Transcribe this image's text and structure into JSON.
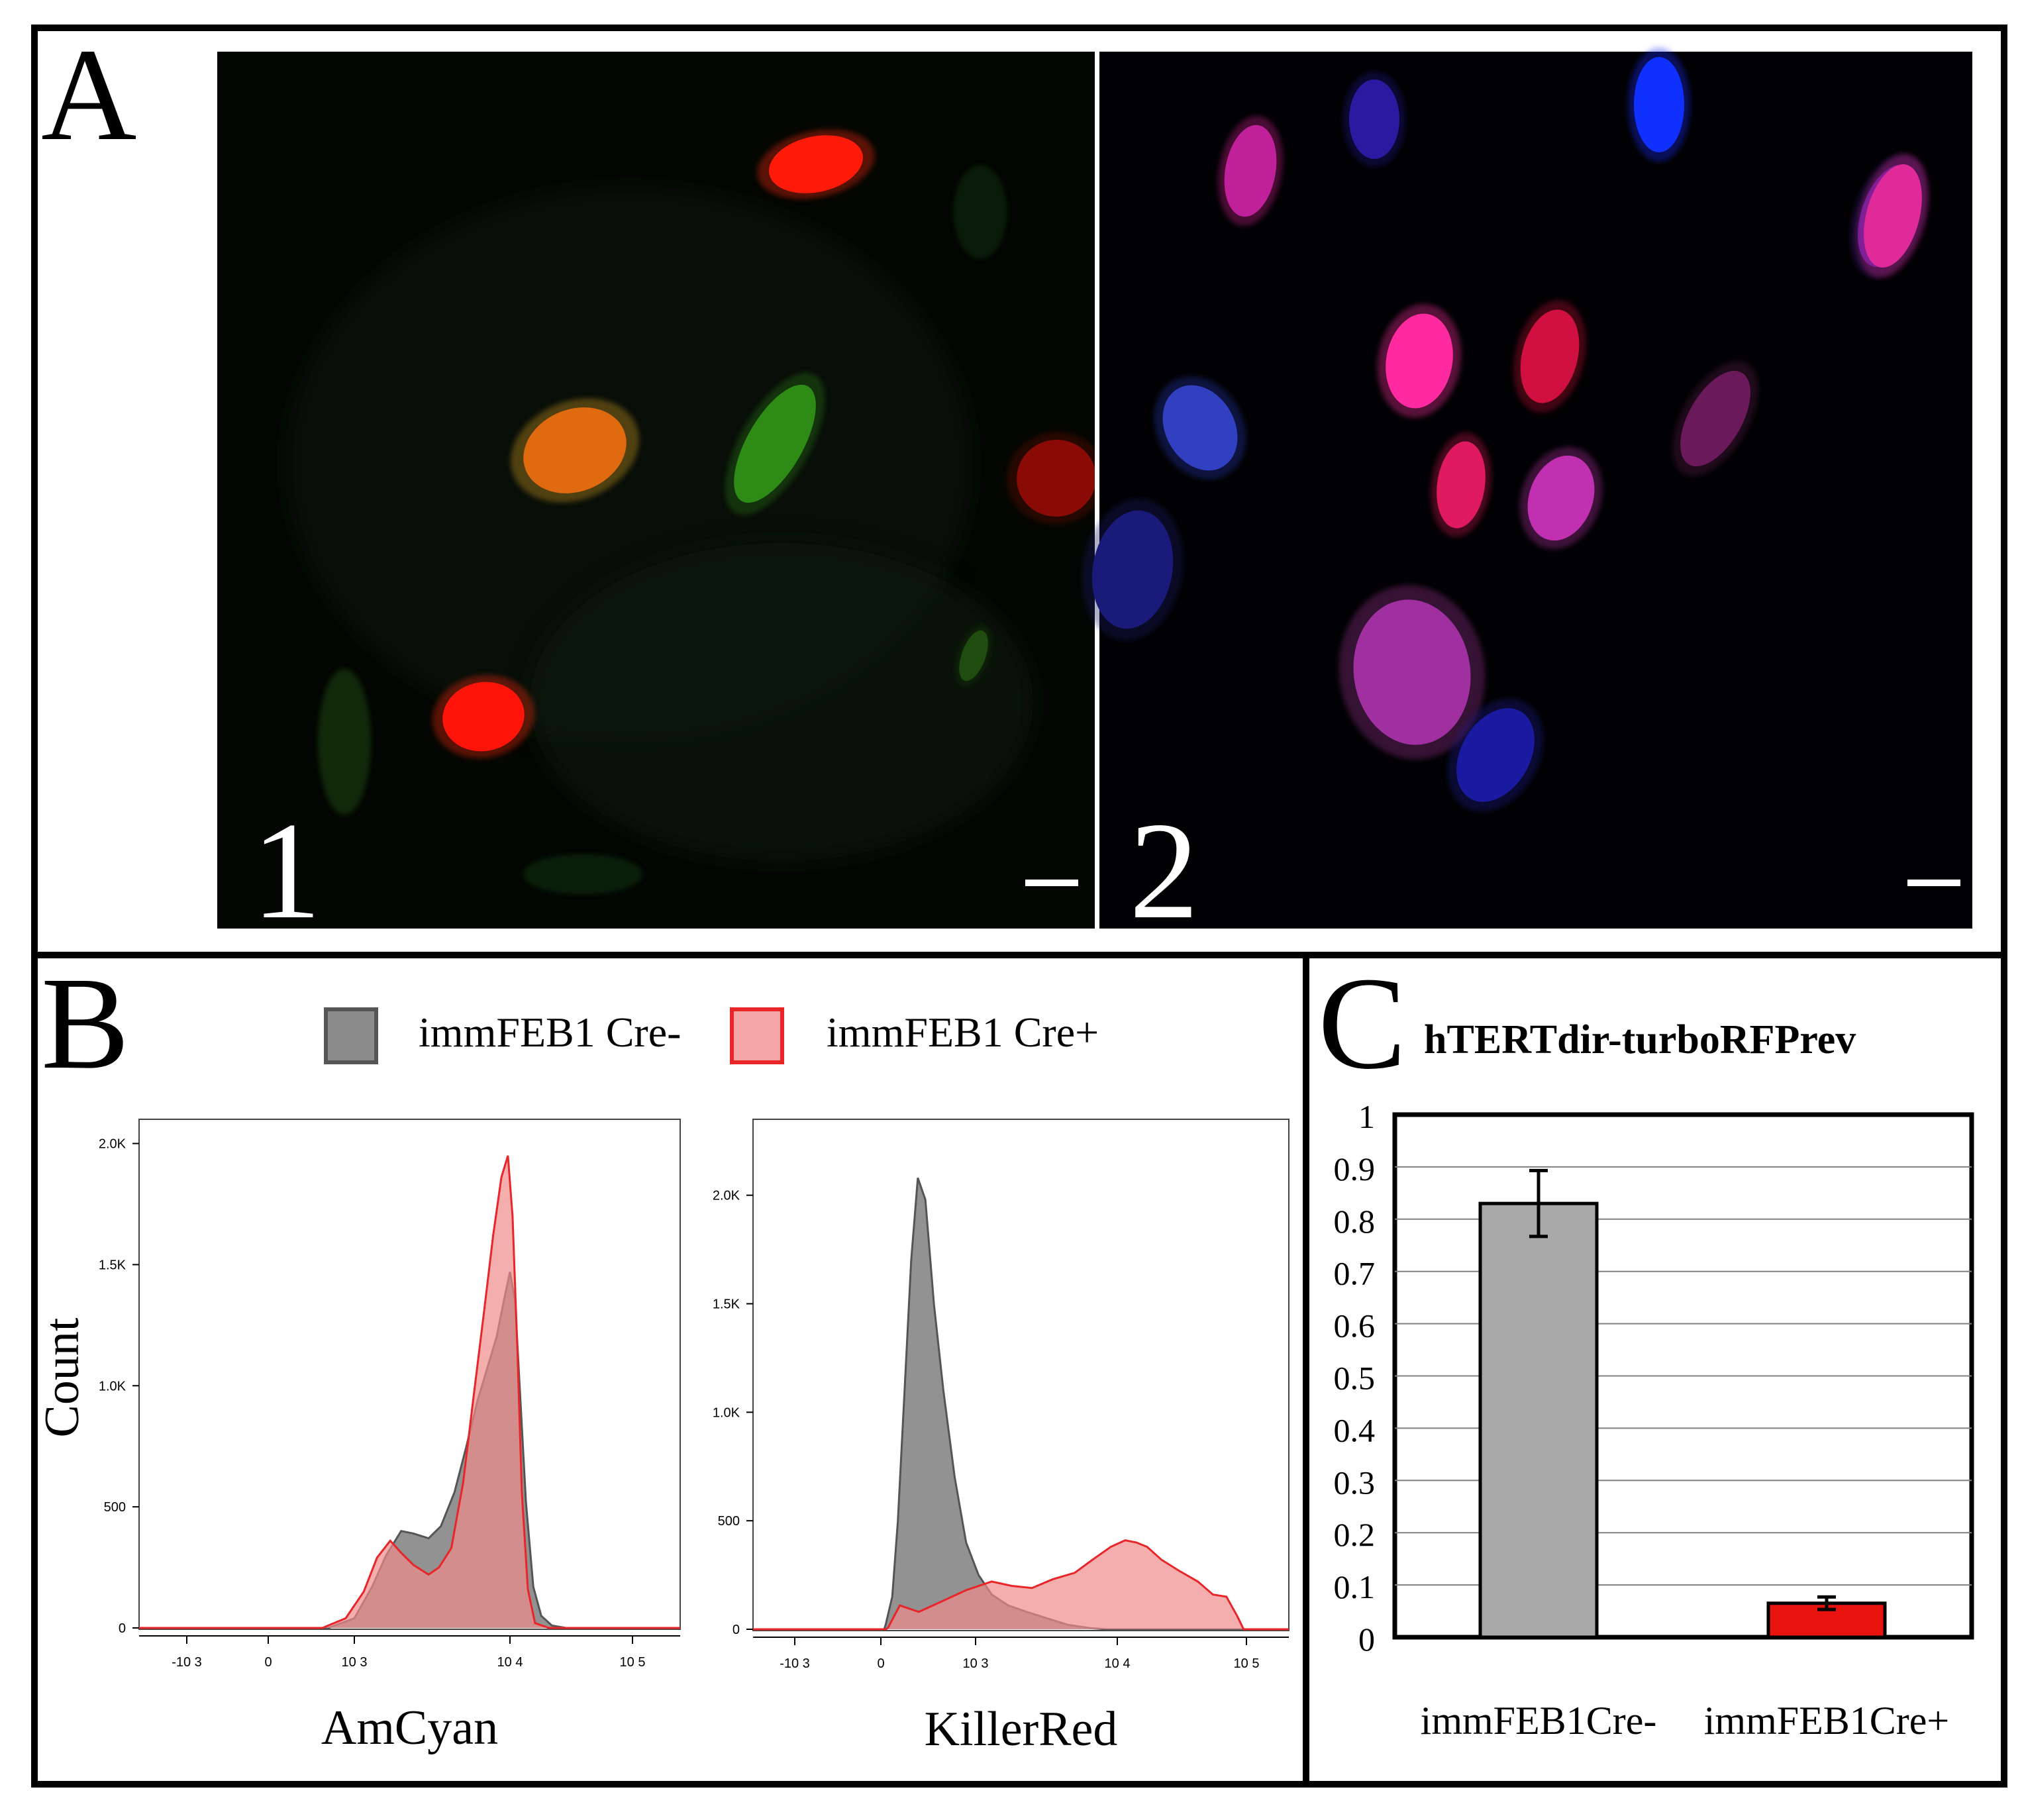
{
  "panel_a": {
    "label": "A",
    "images": [
      {
        "label": "1",
        "nuclei": [
          {
            "color": "#ff1a0a",
            "glow": "#ff2a10"
          },
          {
            "color": "#e06a10",
            "glow": "#d8a020"
          },
          {
            "color": "#2e8c16",
            "glow": "#2a7a14"
          },
          {
            "color": "#ff140a",
            "glow": "#ff2a10"
          },
          {
            "color": "#8a0a06",
            "glow": "#6a0a06"
          },
          {
            "color": "#1f4d10",
            "glow": "#1c4010"
          }
        ]
      },
      {
        "label": "2",
        "nuclei": [
          {
            "color": "#1030ff",
            "glow": "#1a2aff"
          },
          {
            "color": "#c0209a",
            "glow": "#d02090"
          },
          {
            "color": "#ff2aa0",
            "glow": "#ff30a0"
          },
          {
            "color": "#d01040",
            "glow": "#c01030"
          },
          {
            "color": "#e01a60",
            "glow": "#d01850"
          },
          {
            "color": "#c030b0",
            "glow": "#b030a0"
          },
          {
            "color": "#a030a0",
            "glow": "#9a3090"
          },
          {
            "color": "#5a1a9a",
            "glow": "#4a1a8a"
          },
          {
            "color": "#3040c0",
            "glow": "#2838b0"
          },
          {
            "color": "#e02a9a",
            "glow": "#d02a90"
          },
          {
            "color": "#6a1a5a",
            "glow": "#5a1a4a"
          },
          {
            "color": "#1a1aa0",
            "glow": "#1a1a90"
          },
          {
            "color": "#2a1aa0",
            "glow": "#221890"
          },
          {
            "color": "#1a1a7a",
            "glow": "#1a1a6a"
          }
        ]
      }
    ]
  },
  "panel_b": {
    "label": "B",
    "legend": [
      {
        "label": "immFEB1 Cre-",
        "fill": "#8c8c8c",
        "stroke": "#555555"
      },
      {
        "label": "immFEB1 Cre+",
        "fill": "#f4a6a6",
        "stroke": "#e8262a"
      }
    ],
    "ylabel": "Count"
  },
  "panel_c": {
    "label": "C",
    "title": "hTERTdir-turboRFPrev"
  },
  "chart_data": [
    {
      "type": "area",
      "xlabel": "AmCyan",
      "ylabel": "Count",
      "x_scale": "biexponential",
      "x_ticks": [
        "-10 3",
        "0",
        "10 3",
        "10 4",
        "10 5"
      ],
      "y_ticks": [
        "0",
        "500",
        "1.0K",
        "1.5K",
        "2.0K"
      ],
      "ylim": [
        0,
        2100
      ],
      "series": [
        {
          "name": "immFEB1 Cre-",
          "color": "#8c8c8c",
          "x": [
            1000,
            1300,
            1600,
            2000,
            2400,
            3000,
            3600,
            4400,
            5200,
            6200,
            7200,
            8200,
            9200,
            10000,
            11000,
            12000,
            13500,
            15500,
            18000,
            22000
          ],
          "y": [
            40,
            170,
            300,
            400,
            390,
            370,
            420,
            560,
            740,
            940,
            1080,
            1200,
            1360,
            1470,
            1350,
            1000,
            520,
            170,
            50,
            10
          ]
        },
        {
          "name": "immFEB1 Cre+",
          "color": "#e8262a",
          "x": [
            900,
            1150,
            1400,
            1700,
            2000,
            2400,
            3000,
            3500,
            4200,
            5000,
            5800,
            6800,
            7800,
            8800,
            9700,
            10500,
            11500,
            12500,
            14000,
            16000
          ],
          "y": [
            40,
            150,
            290,
            360,
            310,
            260,
            220,
            250,
            330,
            600,
            940,
            1300,
            1620,
            1860,
            1950,
            1700,
            1150,
            560,
            160,
            20
          ]
        }
      ]
    },
    {
      "type": "area",
      "xlabel": "KillerRed",
      "ylabel": "Count",
      "x_scale": "biexponential",
      "x_ticks": [
        "-10 3",
        "0",
        "10 3",
        "10 4",
        "10 5"
      ],
      "y_ticks": [
        "0",
        "500",
        "1.0K",
        "1.5K",
        "2.0K"
      ],
      "ylim": [
        0,
        2350
      ],
      "series": [
        {
          "name": "immFEB1 Cre-",
          "color": "#8c8c8c",
          "x": [
            50,
            120,
            180,
            250,
            320,
            390,
            470,
            560,
            660,
            780,
            900,
            1050,
            1300,
            1700,
            2300,
            3200,
            4500,
            6500
          ],
          "y": [
            20,
            150,
            500,
            1100,
            1700,
            2080,
            1980,
            1500,
            1100,
            700,
            400,
            250,
            160,
            110,
            80,
            50,
            20,
            5
          ]
        },
        {
          "name": "immFEB1 Cre+",
          "color": "#e8262a",
          "x": [
            80,
            200,
            400,
            600,
            900,
            1300,
            1800,
            2500,
            3500,
            5000,
            7000,
            9000,
            11500,
            14000,
            17000,
            22000,
            30000,
            42000,
            55000,
            70000,
            85000,
            95000
          ],
          "y": [
            10,
            110,
            80,
            120,
            180,
            220,
            200,
            190,
            230,
            260,
            330,
            380,
            410,
            400,
            380,
            320,
            270,
            220,
            160,
            150,
            60,
            0
          ]
        }
      ]
    },
    {
      "type": "bar",
      "title": "hTERTdir-turboRFPrev",
      "categories": [
        "immFEB1Cre-",
        "immFEB1Cre+"
      ],
      "values": [
        0.83,
        0.065
      ],
      "errors": [
        0.063,
        0.012
      ],
      "colors": [
        "#a8a8a8",
        "#e8120e"
      ],
      "ylim": [
        0,
        1
      ],
      "y_ticks": [
        "0",
        "0.1",
        "0.2",
        "0.3",
        "0.4",
        "0.5",
        "0.6",
        "0.7",
        "0.8",
        "0.9",
        "1"
      ],
      "grid": true
    }
  ]
}
